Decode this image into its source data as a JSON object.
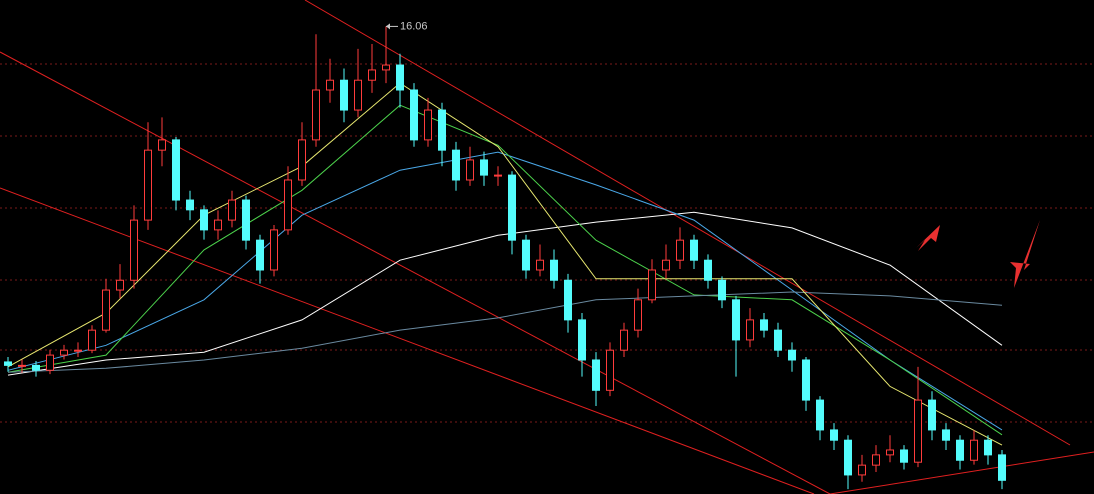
{
  "chart_data": {
    "type": "candlestick",
    "ylim": [
      6.5,
      16.6
    ],
    "up_color": "#ff3c3c",
    "down_color": "#54fcfc",
    "max_label": 16.06,
    "open": [
      9.2,
      9.13,
      9.13,
      9.03,
      9.34,
      9.44,
      9.44,
      9.85,
      10.67,
      10.87,
      12.1,
      13.53,
      13.74,
      12.51,
      12.31,
      11.9,
      12.1,
      12.51,
      11.69,
      11.08,
      11.9,
      12.92,
      13.74,
      14.76,
      14.96,
      14.35,
      14.96,
      15.17,
      15.27,
      14.76,
      13.74,
      14.35,
      13.53,
      12.92,
      13.33,
      13.02,
      13.02,
      11.69,
      11.08,
      11.28,
      10.87,
      10.06,
      9.24,
      8.62,
      9.44,
      9.85,
      10.47,
      11.08,
      11.28,
      11.69,
      11.28,
      10.87,
      10.47,
      9.65,
      10.06,
      9.85,
      9.44,
      9.24,
      8.42,
      7.81,
      7.6,
      6.89,
      7.09,
      7.3,
      7.4,
      7.15,
      8.42,
      7.81,
      7.6,
      7.19,
      7.6,
      7.3
    ],
    "high": [
      9.3,
      9.25,
      9.22,
      9.45,
      9.55,
      9.6,
      9.95,
      10.9,
      11.2,
      12.4,
      14.1,
      14.2,
      13.8,
      12.7,
      12.4,
      12.3,
      12.7,
      12.6,
      11.8,
      12.0,
      13.2,
      14.1,
      15.9,
      15.4,
      15.2,
      15.6,
      15.7,
      16.06,
      15.5,
      14.9,
      14.6,
      14.5,
      13.7,
      13.6,
      13.5,
      13.2,
      13.1,
      11.8,
      11.6,
      11.5,
      11.0,
      10.2,
      9.4,
      9.6,
      10.0,
      10.7,
      11.3,
      11.6,
      11.95,
      11.8,
      11.4,
      10.95,
      10.55,
      10.3,
      10.2,
      10.0,
      9.6,
      9.3,
      8.5,
      7.95,
      7.7,
      7.3,
      7.5,
      7.7,
      7.5,
      9.1,
      8.6,
      7.95,
      7.7,
      7.8,
      7.7,
      7.4
    ],
    "low": [
      9.0,
      8.98,
      8.9,
      8.95,
      9.25,
      9.3,
      9.38,
      9.8,
      10.5,
      10.7,
      11.9,
      13.2,
      12.3,
      12.1,
      11.7,
      11.7,
      11.95,
      11.5,
      10.8,
      10.95,
      11.8,
      12.8,
      13.6,
      14.5,
      14.1,
      14.2,
      14.7,
      14.9,
      14.4,
      13.6,
      13.6,
      13.2,
      12.7,
      12.8,
      12.8,
      12.8,
      11.4,
      10.9,
      10.95,
      10.7,
      9.8,
      8.9,
      8.3,
      8.5,
      9.3,
      9.7,
      10.4,
      10.9,
      11.1,
      11.1,
      10.7,
      10.3,
      8.9,
      9.5,
      9.7,
      9.3,
      9.0,
      8.2,
      7.6,
      7.4,
      6.6,
      6.75,
      6.95,
      7.15,
      7.0,
      7.05,
      7.6,
      7.4,
      7.0,
      7.1,
      7.1,
      6.6
    ],
    "close": [
      9.13,
      9.13,
      9.03,
      9.34,
      9.44,
      9.44,
      9.85,
      10.67,
      10.87,
      12.1,
      13.53,
      13.74,
      12.51,
      12.31,
      11.9,
      12.1,
      12.51,
      11.69,
      11.08,
      11.9,
      12.92,
      13.74,
      14.76,
      14.96,
      14.35,
      14.96,
      15.17,
      15.27,
      14.76,
      13.74,
      14.35,
      13.53,
      12.92,
      13.33,
      13.02,
      13.02,
      11.69,
      11.08,
      11.28,
      10.87,
      10.06,
      9.24,
      8.62,
      9.44,
      9.85,
      10.47,
      11.08,
      11.28,
      11.69,
      11.28,
      10.87,
      10.47,
      9.65,
      10.06,
      9.85,
      9.44,
      9.24,
      8.42,
      7.81,
      7.6,
      6.89,
      7.09,
      7.3,
      7.4,
      7.15,
      8.42,
      7.81,
      7.6,
      7.19,
      7.6,
      7.3,
      6.78
    ],
    "lines": [
      {
        "color": "#ffffff",
        "x": [
          0,
          7,
          14,
          21,
          28,
          35,
          42,
          49,
          56,
          63,
          71
        ],
        "values": [
          8.93,
          9.24,
          9.4,
          10.06,
          11.28,
          11.79,
          12.06,
          12.26,
          11.94,
          11.18,
          9.54
        ]
      },
      {
        "color": "#4aa8e8",
        "x": [
          0,
          7,
          14,
          21,
          28,
          35,
          42,
          49,
          56,
          63,
          71
        ],
        "values": [
          9.03,
          9.54,
          10.47,
          12.2,
          13.12,
          13.49,
          12.82,
          12.1,
          10.67,
          9.24,
          7.81
        ]
      },
      {
        "color": "#4cd24c",
        "x": [
          0,
          7,
          14,
          21,
          28,
          35,
          42,
          49,
          56,
          63,
          71
        ],
        "values": [
          8.99,
          9.34,
          11.49,
          12.71,
          14.45,
          13.63,
          11.69,
          10.57,
          10.47,
          9.24,
          7.71
        ]
      },
      {
        "color": "#6a8aa0",
        "x": [
          0,
          7,
          14,
          21,
          28,
          35,
          42,
          49,
          56,
          63,
          71
        ],
        "values": [
          8.99,
          9.07,
          9.24,
          9.48,
          9.85,
          10.1,
          10.47,
          10.55,
          10.63,
          10.55,
          10.36
        ]
      },
      {
        "color": "#e8e870",
        "x": [
          0,
          7,
          14,
          21,
          28,
          35,
          42,
          49,
          56,
          63,
          71
        ],
        "values": [
          9.1,
          10.2,
          12.2,
          13.2,
          14.9,
          13.6,
          10.9,
          10.9,
          10.9,
          8.7,
          7.5
        ]
      }
    ]
  }
}
